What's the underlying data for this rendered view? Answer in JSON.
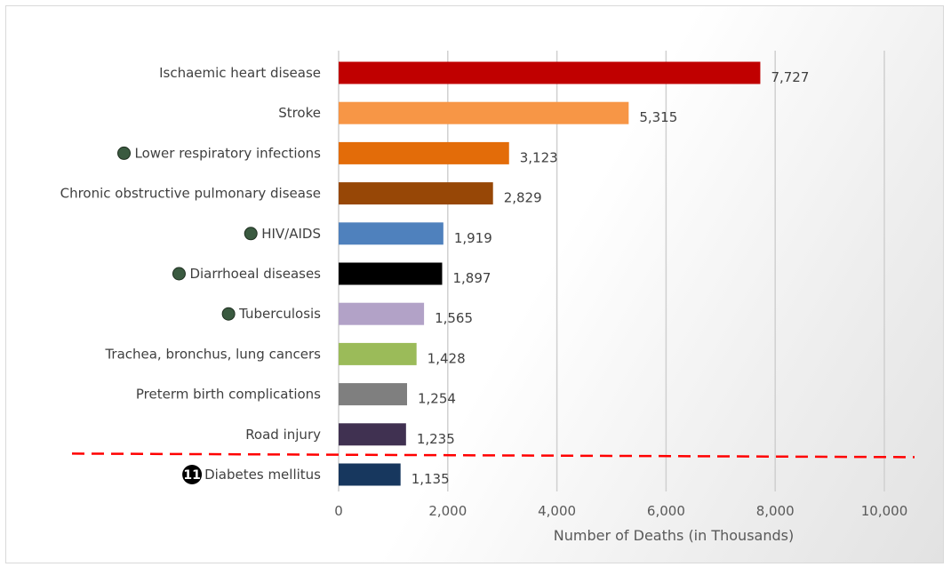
{
  "chart_data": {
    "type": "bar",
    "orientation": "horizontal",
    "categories": [
      "Ischaemic heart disease",
      "Stroke",
      "Lower respiratory infections",
      "Chronic obstructive pulmonary disease",
      "HIV/AIDS",
      "Diarrhoeal diseases",
      "Tuberculosis",
      "Trachea, bronchus, lung cancers",
      "Preterm birth complications",
      "Road injury",
      "Diabetes mellitus"
    ],
    "values": [
      7727,
      5315,
      3123,
      2829,
      1919,
      1897,
      1565,
      1428,
      1254,
      1235,
      1135
    ],
    "value_labels": [
      "7,727",
      "5,315",
      "3,123",
      "2,829",
      "1,919",
      "1,897",
      "1,565",
      "1,428",
      "1,254",
      "1,235",
      "1,135"
    ],
    "bar_colors": [
      "#c00000",
      "#f79646",
      "#e36c09",
      "#974706",
      "#4f81bd",
      "#000000",
      "#b2a2c7",
      "#9bbb59",
      "#7f7f7f",
      "#403151",
      "#17375e"
    ],
    "category_markers": [
      "",
      "",
      "dot",
      "",
      "dot",
      "dot",
      "dot",
      "",
      "",
      "",
      "badge"
    ],
    "marker_badge_text": "11",
    "marker_dot_color": "#3a5a40",
    "xlabel": "Number of Deaths (in Thousands)",
    "ylabel": "",
    "xlim": [
      0,
      10000
    ],
    "x_ticks": [
      0,
      2000,
      4000,
      6000,
      8000,
      10000
    ],
    "x_tick_labels": [
      "0",
      "2,000",
      "4,000",
      "6,000",
      "8,000",
      "10,000"
    ],
    "grid": "vertical",
    "cutoff_line": {
      "style": "dashed",
      "color": "#ff0000",
      "between_categories": [
        "Road injury",
        "Diabetes mellitus"
      ]
    }
  }
}
